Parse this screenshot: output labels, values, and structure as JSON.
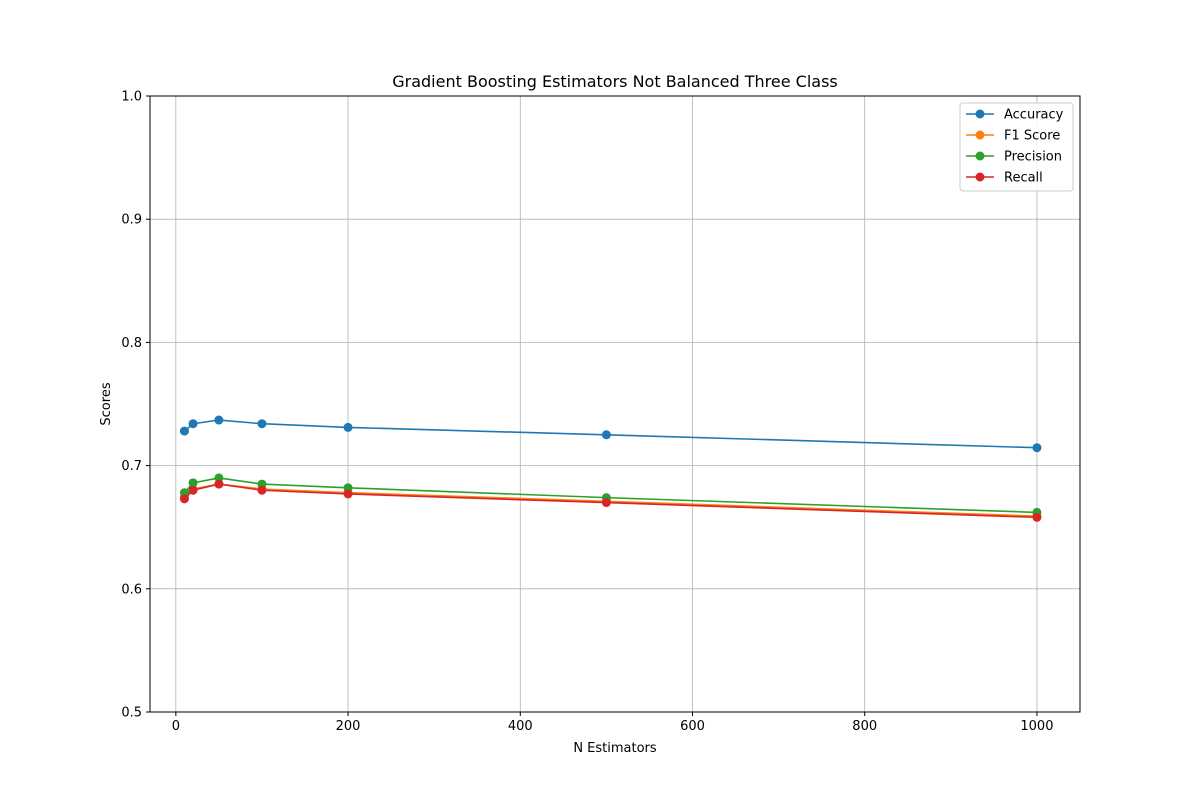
{
  "chart_data": {
    "type": "line",
    "title": "Gradient Boosting Estimators Not Balanced Three Class",
    "xlabel": "N Estimators",
    "ylabel": "Scores",
    "xlim": [
      -30,
      1050
    ],
    "ylim": [
      0.5,
      1.0
    ],
    "xticks": [
      0,
      200,
      400,
      600,
      800,
      1000
    ],
    "yticks": [
      0.5,
      0.6,
      0.7,
      0.8,
      0.9,
      1.0
    ],
    "grid": true,
    "legend_position": "top-right",
    "x": [
      10,
      20,
      50,
      100,
      200,
      500,
      1000
    ],
    "series": [
      {
        "name": "Accuracy",
        "color": "#1f77b4",
        "values": [
          0.728,
          0.734,
          0.737,
          0.734,
          0.731,
          0.725,
          0.7145
        ]
      },
      {
        "name": "F1 Score",
        "color": "#ff7f0e",
        "values": [
          0.675,
          0.681,
          0.685,
          0.681,
          0.678,
          0.671,
          0.659
        ]
      },
      {
        "name": "Precision",
        "color": "#2ca02c",
        "values": [
          0.678,
          0.686,
          0.69,
          0.685,
          0.682,
          0.674,
          0.662
        ]
      },
      {
        "name": "Recall",
        "color": "#d62728",
        "values": [
          0.673,
          0.68,
          0.685,
          0.68,
          0.677,
          0.67,
          0.658
        ]
      }
    ]
  }
}
